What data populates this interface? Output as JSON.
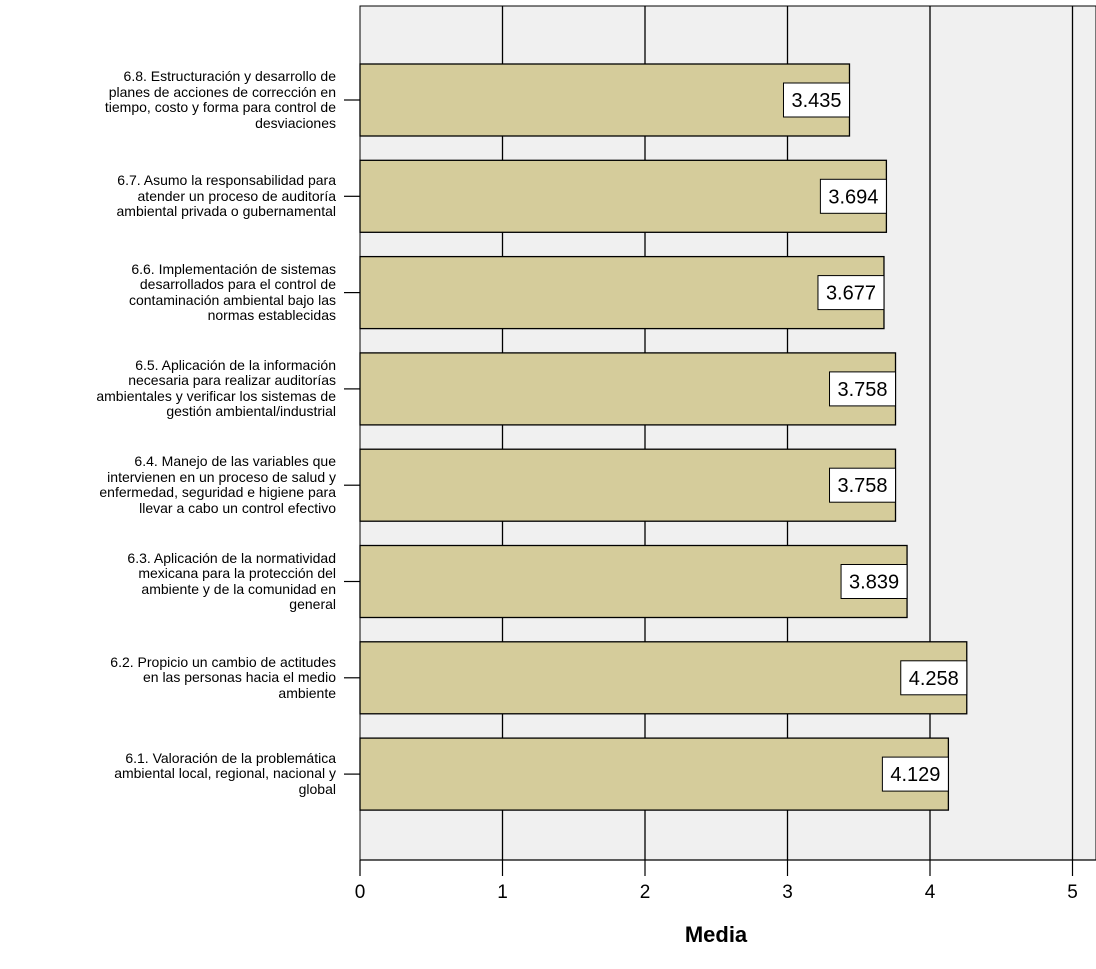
{
  "chart_data": {
    "type": "bar",
    "orientation": "horizontal",
    "title": "",
    "xlabel": "Media",
    "ylabel": "",
    "xlim": [
      0,
      5
    ],
    "xticks": [
      0,
      1,
      2,
      3,
      4,
      5
    ],
    "grid": "vertical",
    "legend": "none",
    "categories": [
      "6.8. Estructuración  y desarrollo de\nplanes de acciones de corrección en\ntiempo, costo y forma para control de\ndesviaciones",
      "6.7. Asumo la responsabilidad para\natender un proceso de auditoría\nambiental privada o gubernamental",
      "6.6. Implementación de  sistemas\ndesarrollados para el control de\ncontaminación ambiental bajo las\nnormas establecidas",
      "6.5. Aplicación de  la información\nnecesaria para realizar auditorías\nambientales y verificar los sistemas de\ngestión ambiental/industrial",
      "6.4. Manejo de  las variables que\nintervienen en un proceso de salud y\nenfermedad, seguridad e higiene para\nllevar a cabo un control efectivo",
      "6.3. Aplicación de  la normatividad\nmexicana para la protección del\nambiente y de la comunidad en\ngeneral",
      "6.2. Propicio  un cambio de actitudes\nen las personas hacia el medio\nambiente",
      "6.1. Valoración de  la problemática\nambiental local, regional, nacional y\nglobal"
    ],
    "values": [
      3.435,
      3.694,
      3.677,
      3.758,
      3.758,
      3.839,
      4.258,
      4.129
    ],
    "data_labels": [
      "3.435",
      "3.694",
      "3.677",
      "3.758",
      "3.758",
      "3.839",
      "4.258",
      "4.129"
    ],
    "colors": {
      "bar_fill": "#d5cc9b",
      "bar_stroke": "#000000",
      "plot_background": "#f0f0f0",
      "gridline": "#000000",
      "label_box_fill": "#ffffff"
    }
  }
}
